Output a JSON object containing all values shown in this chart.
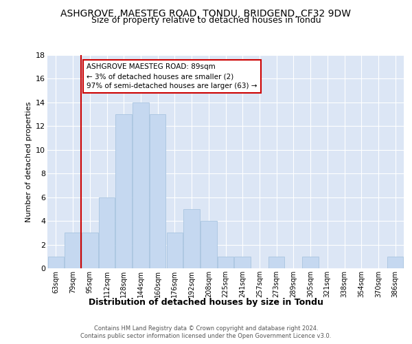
{
  "title": "ASHGROVE, MAESTEG ROAD, TONDU, BRIDGEND, CF32 9DW",
  "subtitle": "Size of property relative to detached houses in Tondu",
  "xlabel": "Distribution of detached houses by size in Tondu",
  "ylabel": "Number of detached properties",
  "footer_line1": "Contains HM Land Registry data © Crown copyright and database right 2024.",
  "footer_line2": "Contains public sector information licensed under the Open Government Licence v3.0.",
  "categories": [
    "63sqm",
    "79sqm",
    "95sqm",
    "112sqm",
    "128sqm",
    "144sqm",
    "160sqm",
    "176sqm",
    "192sqm",
    "208sqm",
    "225sqm",
    "241sqm",
    "257sqm",
    "273sqm",
    "289sqm",
    "305sqm",
    "321sqm",
    "338sqm",
    "354sqm",
    "370sqm",
    "386sqm"
  ],
  "values": [
    1,
    3,
    3,
    6,
    13,
    14,
    13,
    3,
    5,
    4,
    1,
    1,
    0,
    1,
    0,
    1,
    0,
    0,
    0,
    0,
    1
  ],
  "bar_color": "#c5d8f0",
  "bar_edge_color": "#a8c4e0",
  "vline_color": "#cc0000",
  "vline_x": 1.5,
  "annotation_title": "ASHGROVE MAESTEG ROAD: 89sqm",
  "annotation_line1": "← 3% of detached houses are smaller (2)",
  "annotation_line2": "97% of semi-detached houses are larger (63) →",
  "annotation_box_color": "#cc0000",
  "ylim": [
    0,
    18
  ],
  "yticks": [
    0,
    2,
    4,
    6,
    8,
    10,
    12,
    14,
    16,
    18
  ],
  "fig_background": "#ffffff",
  "plot_background": "#dce6f5",
  "grid_color": "#ffffff",
  "title_fontsize": 10,
  "subtitle_fontsize": 9,
  "ylabel_fontsize": 8,
  "xlabel_fontsize": 9,
  "tick_fontsize": 7,
  "footer_fontsize": 6,
  "annotation_fontsize": 7.5
}
